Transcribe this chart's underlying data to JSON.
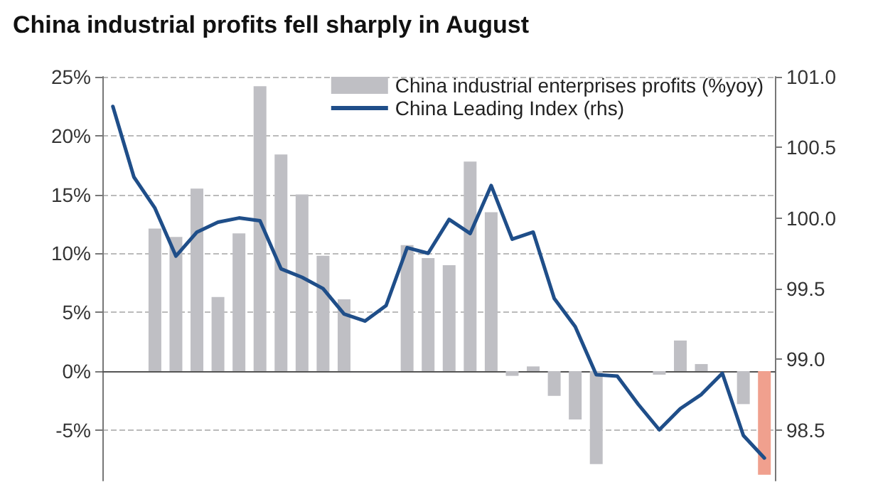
{
  "chart_data": {
    "type": "bar",
    "title": "China industrial profits fell sharply in August",
    "categories": [
      null,
      null,
      null,
      null,
      null,
      null,
      null,
      null,
      null,
      null,
      null,
      null,
      null,
      null,
      null,
      null,
      null,
      null,
      null,
      null,
      null,
      null,
      null,
      null,
      null,
      null,
      null,
      null,
      null,
      null,
      null,
      null
    ],
    "series": [
      {
        "name": "China industrial enterprises profits (%yoy)",
        "color": "#bfbfc4",
        "colors": [
          "#bfbfc4",
          "#bfbfc4",
          "#bfbfc4",
          "#bfbfc4",
          "#bfbfc4",
          "#bfbfc4",
          "#bfbfc4",
          "#bfbfc4",
          "#bfbfc4",
          "#bfbfc4",
          "#bfbfc4",
          "#bfbfc4",
          "#bfbfc4",
          "#bfbfc4",
          "#bfbfc4",
          "#bfbfc4",
          "#bfbfc4",
          "#bfbfc4",
          "#bfbfc4",
          "#bfbfc4",
          "#bfbfc4",
          "#bfbfc4",
          "#bfbfc4",
          "#bfbfc4",
          "#bfbfc4",
          "#bfbfc4",
          "#bfbfc4",
          "#bfbfc4",
          "#bfbfc4",
          "#bfbfc4",
          "#bfbfc4",
          "#f0a08e"
        ],
        "values": [
          null,
          null,
          12.1,
          11.4,
          15.5,
          6.3,
          11.7,
          24.2,
          18.4,
          15.0,
          9.8,
          6.1,
          null,
          null,
          10.7,
          9.6,
          9.0,
          17.8,
          13.5,
          -0.4,
          0.4,
          -2.1,
          -4.1,
          -7.9,
          null,
          null,
          -0.3,
          2.6,
          0.6,
          null,
          -2.8,
          -8.8
        ]
      },
      {
        "name": "China Leading Index (rhs)",
        "type": "line",
        "axis": "y2",
        "color": "#1f4e89",
        "values": [
          100.79,
          100.29,
          100.07,
          99.73,
          99.9,
          99.97,
          100.0,
          99.98,
          99.64,
          99.58,
          99.5,
          99.32,
          99.27,
          99.38,
          99.79,
          99.75,
          99.99,
          99.89,
          100.23,
          99.85,
          99.9,
          99.43,
          99.23,
          98.89,
          98.88,
          98.68,
          98.5,
          98.65,
          98.75,
          98.9,
          98.46,
          98.3
        ]
      }
    ],
    "ylim": [
      -9.3,
      25
    ],
    "yticks": [
      {
        "value": -5,
        "label": "-5%"
      },
      {
        "value": 0,
        "label": "0%"
      },
      {
        "value": 5,
        "label": "5%"
      },
      {
        "value": 10,
        "label": "10%"
      },
      {
        "value": 15,
        "label": "15%"
      },
      {
        "value": 20,
        "label": "20%"
      },
      {
        "value": 25,
        "label": "25%"
      }
    ],
    "y2lim": [
      98.14,
      101.0
    ],
    "y2ticks": [
      98.5,
      {
        "value": 99,
        "label": "99.0"
      },
      99.5,
      {
        "value": 100,
        "label": "100.0"
      },
      100.5,
      {
        "value": 101,
        "label": "101.0"
      }
    ],
    "grid": "y",
    "legend": "top right",
    "marker": "none"
  }
}
